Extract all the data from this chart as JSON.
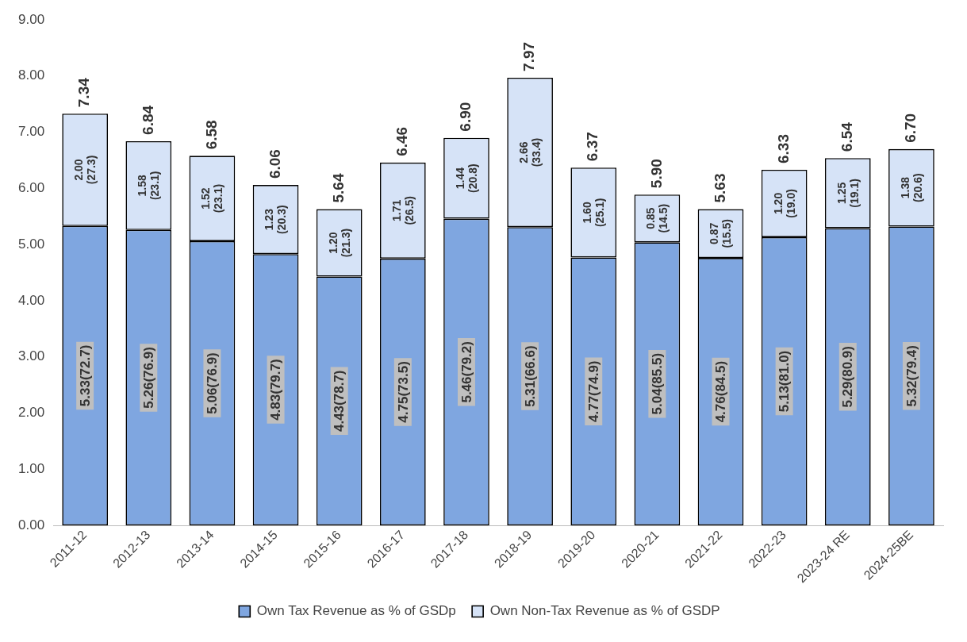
{
  "chart_data": {
    "type": "bar",
    "stacked": true,
    "legend": "bottom",
    "grid": false,
    "categories": [
      "2011-12",
      "2012-13",
      "2013-14",
      "2014-15",
      "2015-16",
      "2016-17",
      "2017-18",
      "2018-19",
      "2019-20",
      "2020-21",
      "2021-22",
      "2022-23",
      "2023-24 RE",
      "2024-25BE"
    ],
    "ylim": [
      0,
      9
    ],
    "yticks": [
      {
        "value": 0,
        "label": "0.00"
      },
      {
        "value": 1,
        "label": "1.00"
      },
      {
        "value": 2,
        "label": "2.00"
      },
      {
        "value": 3,
        "label": "3.00"
      },
      {
        "value": 4,
        "label": "4.00"
      },
      {
        "value": 5,
        "label": "5.00"
      },
      {
        "value": 6,
        "label": "6.00"
      },
      {
        "value": 7,
        "label": "7.00"
      },
      {
        "value": 8,
        "label": "8.00"
      },
      {
        "value": 9,
        "label": "9.00"
      }
    ],
    "series": [
      {
        "name": "Own Tax Revenue as % of GSDp",
        "color": "#7fa6e0",
        "values": [
          5.33,
          5.26,
          5.06,
          4.83,
          4.43,
          4.75,
          5.46,
          5.31,
          4.77,
          5.04,
          4.76,
          5.13,
          5.29,
          5.32
        ],
        "value_labels": [
          "5.33(72.7)",
          "5.26(76.9)",
          "5.06(76.9)",
          "4.83(79.7)",
          "4.43(78.7)",
          "4.75(73.5)",
          "5.46(79.2)",
          "5.31(66.6)",
          "4.77(74.9)",
          "5.04(85.5)",
          "4.76(84.5)",
          "5.13(81.0)",
          "5.29(80.9)",
          "5.32(79.4)"
        ]
      },
      {
        "name": "Own Non-Tax Revenue as % of GSDP",
        "color": "#d6e3f7",
        "values": [
          2.0,
          1.58,
          1.52,
          1.23,
          1.2,
          1.71,
          1.44,
          2.66,
          1.6,
          0.85,
          0.87,
          1.2,
          1.25,
          1.38
        ],
        "value_labels": [
          "2.00 (27.3)",
          "1.58 (23.1)",
          "1.52 (23.1)",
          "1.23 (20.3)",
          "1.20 (21.3)",
          "1.71 (26.5)",
          "1.44 (20.8)",
          "2.66 (33.4)",
          "1.60 (25.1)",
          "0.85 (14.5)",
          "0.87 (15.5)",
          "1.20 (19.0)",
          "1.25 (19.1)",
          "1.38 (20.6)"
        ]
      }
    ],
    "totals": [
      "7.34",
      "6.84",
      "6.58",
      "6.06",
      "5.64",
      "6.46",
      "6.90",
      "7.97",
      "6.37",
      "5.90",
      "5.63",
      "6.33",
      "6.54",
      "6.70"
    ]
  }
}
